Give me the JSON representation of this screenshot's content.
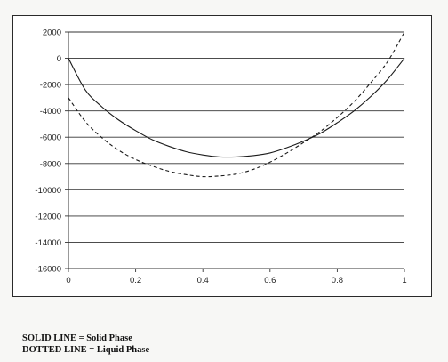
{
  "chart_data": {
    "type": "line",
    "title": "",
    "xlabel": "",
    "ylabel": "",
    "xlim": [
      0,
      1
    ],
    "ylim": [
      -16000,
      2000
    ],
    "x_ticks": [
      "0",
      "0.2",
      "0.4",
      "0.6",
      "0.8",
      "1"
    ],
    "y_ticks": [
      "2000",
      "0",
      "-2000",
      "-4000",
      "-6000",
      "-8000",
      "-10000",
      "-12000",
      "-14000",
      "-16000"
    ],
    "grid": "horizontal",
    "legend": "none",
    "x": [
      0,
      0.05,
      0.1,
      0.15,
      0.2,
      0.25,
      0.3,
      0.35,
      0.4,
      0.45,
      0.5,
      0.55,
      0.6,
      0.65,
      0.7,
      0.75,
      0.8,
      0.85,
      0.9,
      0.95,
      1.0
    ],
    "series": [
      {
        "style": "solid",
        "values": [
          0,
          -2400,
          -3700,
          -4700,
          -5500,
          -6200,
          -6700,
          -7100,
          -7350,
          -7500,
          -7500,
          -7400,
          -7200,
          -6800,
          -6300,
          -5700,
          -4900,
          -4000,
          -2900,
          -1600,
          0
        ]
      },
      {
        "style": "dashed",
        "values": [
          -3000,
          -4800,
          -6050,
          -7000,
          -7700,
          -8200,
          -8600,
          -8850,
          -9000,
          -8950,
          -8800,
          -8450,
          -7900,
          -7200,
          -6400,
          -5550,
          -4500,
          -3300,
          -1850,
          -250,
          2000
        ]
      }
    ]
  },
  "legend_notes": [
    "SOLID LINE = Solid Phase",
    "DOTTED LINE = Liquid Phase"
  ]
}
